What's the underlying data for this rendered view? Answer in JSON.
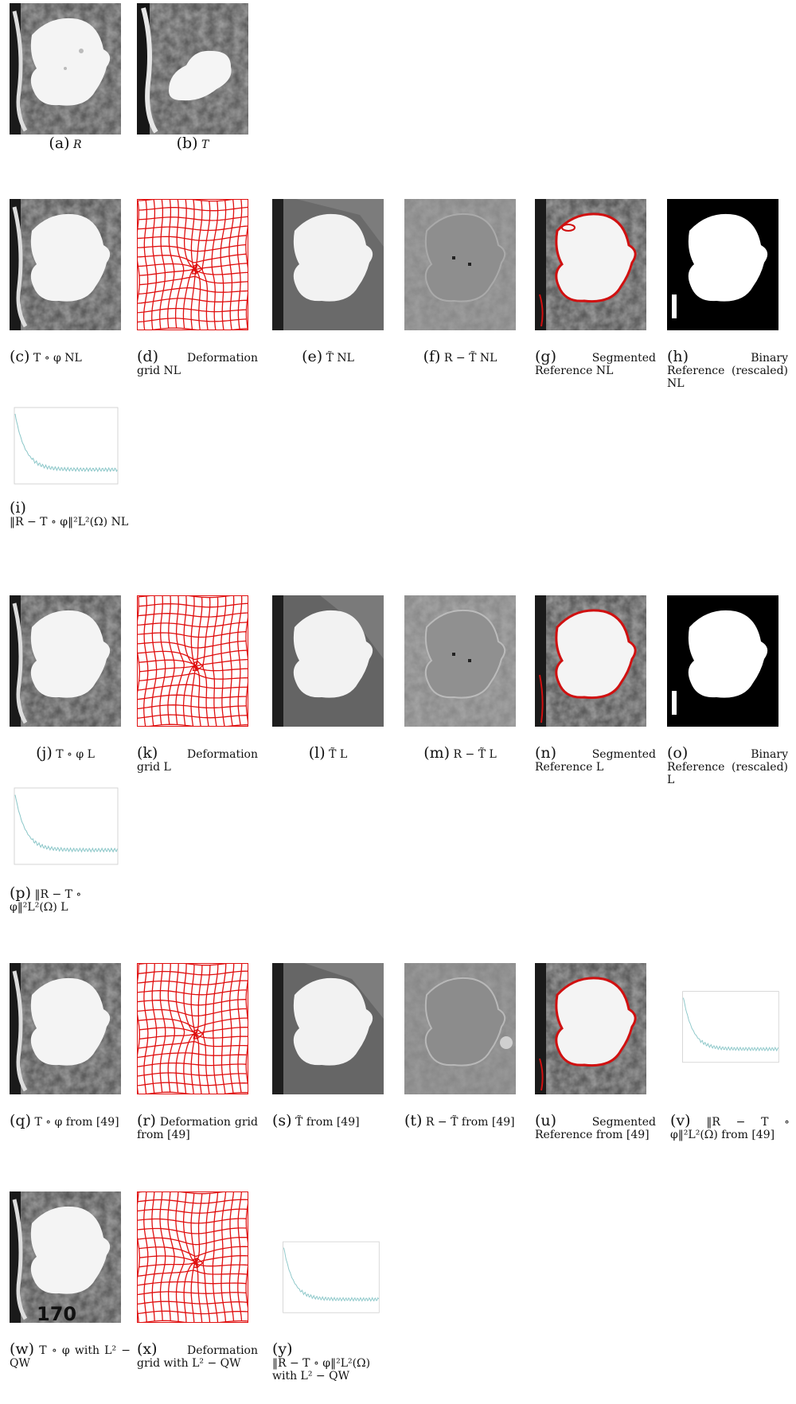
{
  "figure": {
    "top_row": [
      {
        "id": "a",
        "letter": "(a)",
        "text": "R"
      },
      {
        "id": "b",
        "letter": "(b)",
        "text": "T"
      }
    ],
    "nl_row": [
      {
        "id": "c",
        "letter": "(c)",
        "text": "T ∘ φ NL"
      },
      {
        "id": "d",
        "letter": "(d)",
        "text": "Deformation grid NL"
      },
      {
        "id": "e",
        "letter": "(e)",
        "text": "T̃ NL"
      },
      {
        "id": "f",
        "letter": "(f)",
        "text": "R − T̃ NL"
      },
      {
        "id": "g",
        "letter": "(g)",
        "text": "Segmented Reference NL"
      },
      {
        "id": "h",
        "letter": "(h)",
        "text": "Binary Reference (rescaled) NL"
      },
      {
        "id": "i",
        "letter": "(i)",
        "text": "‖R − T ∘ φ‖²L²(Ω) NL"
      }
    ],
    "l_row": [
      {
        "id": "j",
        "letter": "(j)",
        "text": "T ∘ φ L"
      },
      {
        "id": "k",
        "letter": "(k)",
        "text": "Deformation grid L"
      },
      {
        "id": "l",
        "letter": "(l)",
        "text": "T̃ L"
      },
      {
        "id": "m",
        "letter": "(m)",
        "text": "R − T̃ L"
      },
      {
        "id": "n",
        "letter": "(n)",
        "text": "Segmented Reference L"
      },
      {
        "id": "o",
        "letter": "(o)",
        "text": "Binary Reference (rescaled) L"
      },
      {
        "id": "p",
        "letter": "(p)",
        "text": "‖R − T ∘ φ‖²L²(Ω) L"
      }
    ],
    "ref_row": [
      {
        "id": "q",
        "letter": "(q)",
        "text": "T ∘ φ from [49]"
      },
      {
        "id": "r",
        "letter": "(r)",
        "text": "Deformation grid from [49]"
      },
      {
        "id": "s",
        "letter": "(s)",
        "text": "T̃ from [49]"
      },
      {
        "id": "t",
        "letter": "(t)",
        "text": "R − T̃ from [49]"
      },
      {
        "id": "u",
        "letter": "(u)",
        "text": "Segmented Reference from [49]"
      },
      {
        "id": "v",
        "letter": "(v)",
        "text": "‖R − T ∘ φ‖²L²(Ω) from [49]"
      }
    ],
    "qw_row": [
      {
        "id": "w",
        "letter": "(w)",
        "text": "T ∘ φ with L² − QW"
      },
      {
        "id": "x",
        "letter": "(x)",
        "text": "Deformation grid with L² − QW"
      },
      {
        "id": "y",
        "letter": "(y)",
        "text": "‖R − T ∘ φ‖²L²(Ω) with L² − QW"
      }
    ],
    "page_number": "170"
  },
  "colors": {
    "grid": "#e01010",
    "segment": "#d01010",
    "curve": "#8ac6c8",
    "mri_dark": "#3a3a3a",
    "mri_light": "#f2f2f2"
  }
}
